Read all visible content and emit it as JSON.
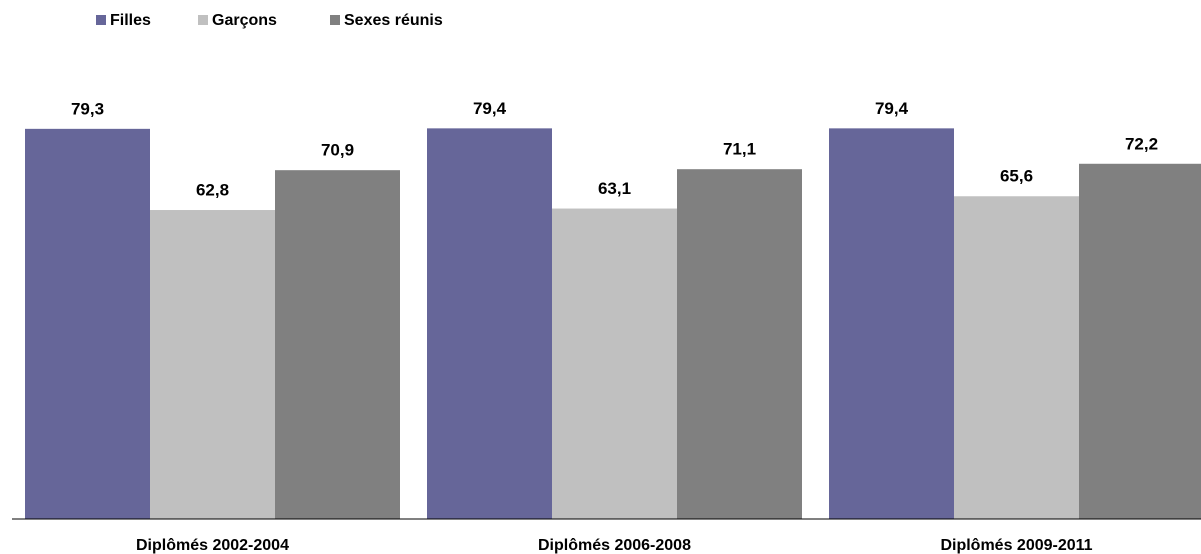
{
  "chart_data": {
    "type": "bar",
    "categories": [
      "Diplômés 2002-2004",
      "Diplômés 2006-2008",
      "Diplômés 2009-2011"
    ],
    "series": [
      {
        "name": "Filles",
        "color": "#666699",
        "values": [
          79.3,
          79.4,
          79.4
        ],
        "value_labels": [
          "79,3",
          "79,4",
          "79,4"
        ]
      },
      {
        "name": "Garçons",
        "color": "#c0c0c0",
        "values": [
          62.8,
          63.1,
          65.6
        ],
        "value_labels": [
          "62,8",
          "63,1",
          "65,6"
        ]
      },
      {
        "name": "Sexes réunis",
        "color": "#808080",
        "values": [
          70.9,
          71.1,
          72.2
        ],
        "value_labels": [
          "70,9",
          "71,1",
          "72,2"
        ]
      }
    ],
    "ylim": [
      0,
      100
    ],
    "legend": "top-left"
  }
}
